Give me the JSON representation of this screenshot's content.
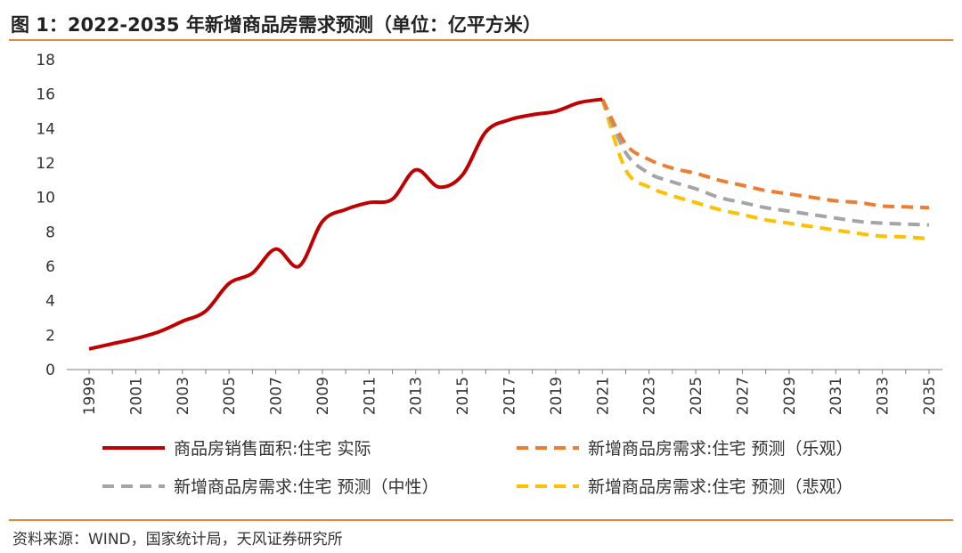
{
  "header": {
    "title": "图 1：2022-2035 年新增商品房需求预测（单位：亿平方米）"
  },
  "footer": {
    "source": "资料来源：WIND，国家统计局，天风证券研究所"
  },
  "colors": {
    "actual": "#c00000",
    "optimistic": "#ed7d31",
    "neutral": "#a5a5a5",
    "pessimistic": "#ffc000",
    "rule": "#e8873a"
  },
  "chart_data": {
    "type": "line",
    "ylim": [
      0,
      18
    ],
    "yticks": [
      0,
      2,
      4,
      6,
      8,
      10,
      12,
      14,
      16,
      18
    ],
    "xlim": [
      1999,
      2035
    ],
    "xticks": [
      "1999",
      "2001",
      "2003",
      "2005",
      "2007",
      "2009",
      "2011",
      "2013",
      "2015",
      "2017",
      "2019",
      "2021",
      "2023",
      "2025",
      "2027",
      "2029",
      "2031",
      "2033",
      "2035"
    ],
    "grid": false,
    "legend_position": "bottom",
    "series": [
      {
        "name": "商品房销售面积:住宅 实际",
        "style": "solid",
        "color": "#c00000",
        "x": [
          1999,
          2000,
          2001,
          2002,
          2003,
          2004,
          2005,
          2006,
          2007,
          2008,
          2009,
          2010,
          2011,
          2012,
          2013,
          2014,
          2015,
          2016,
          2017,
          2018,
          2019,
          2020,
          2021
        ],
        "y": [
          1.2,
          1.5,
          1.8,
          2.2,
          2.8,
          3.4,
          5.0,
          5.6,
          7.0,
          6.0,
          8.6,
          9.3,
          9.7,
          9.9,
          11.6,
          10.6,
          11.3,
          13.8,
          14.5,
          14.8,
          15.0,
          15.5,
          15.7
        ]
      },
      {
        "name": "新增商品房需求:住宅 预测（乐观）",
        "style": "dashed",
        "color": "#ed7d31",
        "x": [
          2021,
          2022,
          2023,
          2024,
          2025,
          2026,
          2027,
          2028,
          2029,
          2030,
          2031,
          2032,
          2033,
          2034,
          2035
        ],
        "y": [
          15.7,
          13.1,
          12.2,
          11.7,
          11.4,
          11.0,
          10.7,
          10.4,
          10.2,
          10.0,
          9.8,
          9.7,
          9.5,
          9.45,
          9.4
        ]
      },
      {
        "name": "新增商品房需求:住宅 预测（中性）",
        "style": "dashed",
        "color": "#a5a5a5",
        "x": [
          2021,
          2022,
          2023,
          2024,
          2025,
          2026,
          2027,
          2028,
          2029,
          2030,
          2031,
          2032,
          2033,
          2034,
          2035
        ],
        "y": [
          15.7,
          12.6,
          11.4,
          10.9,
          10.5,
          10.0,
          9.7,
          9.4,
          9.2,
          9.0,
          8.8,
          8.6,
          8.5,
          8.45,
          8.4
        ]
      },
      {
        "name": "新增商品房需求:住宅 预测（悲观）",
        "style": "dashed",
        "color": "#ffc000",
        "x": [
          2021,
          2022,
          2023,
          2024,
          2025,
          2026,
          2027,
          2028,
          2029,
          2030,
          2031,
          2032,
          2033,
          2034,
          2035
        ],
        "y": [
          15.7,
          11.6,
          10.6,
          10.1,
          9.7,
          9.3,
          9.0,
          8.7,
          8.5,
          8.3,
          8.1,
          7.9,
          7.75,
          7.7,
          7.6
        ]
      }
    ]
  }
}
